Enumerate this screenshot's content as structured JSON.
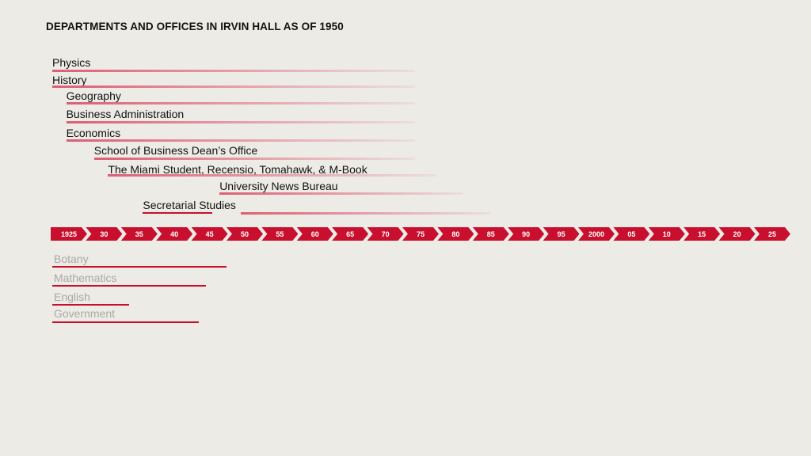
{
  "title": "DEPARTMENTS AND OFFICES IN IRVIN HALL AS OF 1950",
  "timeline": {
    "start_year": 1925,
    "end_year": 2030,
    "tick_labels": [
      "1925",
      "30",
      "35",
      "40",
      "45",
      "50",
      "55",
      "60",
      "65",
      "70",
      "75",
      "80",
      "85",
      "90",
      "95",
      "2000",
      "05",
      "10",
      "15",
      "20",
      "25"
    ],
    "color": "#c8102e"
  },
  "current_units": [
    {
      "name": "Physics",
      "start": 1925,
      "end": 1977
    },
    {
      "name": "History",
      "start": 1925,
      "end": 1977
    },
    {
      "name": "Geography",
      "start": 1927,
      "end": 1977
    },
    {
      "name": "Business Administration",
      "start": 1927,
      "end": 1977
    },
    {
      "name": "Economics",
      "start": 1927,
      "end": 1977
    },
    {
      "name": "School of Business Dean’s Office",
      "start": 1931,
      "end": 1977
    },
    {
      "name": "The Miami Student, Recensio, Tomahawk, & M-Book",
      "start": 1933,
      "end": 1980
    },
    {
      "name": "University News Bureau",
      "start": 1949,
      "end": 1984
    },
    {
      "name": "Secretarial Studies",
      "start": 1938,
      "end": 1988,
      "former_segment_end": 1948,
      "gap_until": 1952
    }
  ],
  "former_units": [
    {
      "name": "Botany",
      "start": 1925,
      "end": 1950
    },
    {
      "name": "Mathematics",
      "start": 1925,
      "end": 1947
    },
    {
      "name": "English",
      "start": 1925,
      "end": 1936
    },
    {
      "name": "Government",
      "start": 1925,
      "end": 1946
    }
  ],
  "legend_colors": {
    "active_fade": "#dd566e",
    "former": "#c8102e",
    "former_text": "#a9a9a6"
  }
}
